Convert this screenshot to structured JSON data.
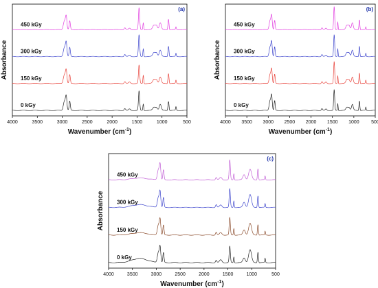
{
  "chart_data": [
    {
      "type": "line",
      "panel_label": "(a)",
      "xlabel": "Wavenumber (cm",
      "xlabel_sup": "-1",
      "xlabel_end": ")",
      "ylabel": "Absorbance",
      "xlim": [
        4000,
        500
      ],
      "x_reversed": true,
      "x_ticks": [
        4000,
        3500,
        3000,
        2500,
        2000,
        1500,
        1000,
        500
      ],
      "y_ticks_shown": false,
      "series": [
        {
          "name": "0 kGy",
          "color": "#222222",
          "offset": 0,
          "peaks": [
            [
              2955,
              0.42,
              22
            ],
            [
              2920,
              0.55,
              14
            ],
            [
              2850,
              0.4,
              12
            ],
            [
              1745,
              0.08,
              14
            ],
            [
              1650,
              0.06,
              18
            ],
            [
              1460,
              0.85,
              12
            ],
            [
              1375,
              0.28,
              8
            ],
            [
              1160,
              0.14,
              25
            ],
            [
              1110,
              0.12,
              20
            ],
            [
              1035,
              0.26,
              20
            ],
            [
              870,
              0.4,
              10
            ],
            [
              720,
              0.16,
              8
            ]
          ]
        },
        {
          "name": "150 kGy",
          "color": "#e8423a",
          "offset": 1,
          "peaks": [
            [
              2955,
              0.4,
              22
            ],
            [
              2920,
              0.52,
              14
            ],
            [
              2850,
              0.38,
              12
            ],
            [
              1745,
              0.08,
              14
            ],
            [
              1650,
              0.06,
              18
            ],
            [
              1460,
              0.8,
              12
            ],
            [
              1375,
              0.36,
              8
            ],
            [
              1160,
              0.18,
              25
            ],
            [
              1110,
              0.16,
              20
            ],
            [
              1035,
              0.28,
              20
            ],
            [
              870,
              0.44,
              10
            ],
            [
              720,
              0.14,
              8
            ]
          ]
        },
        {
          "name": "300 kGy",
          "color": "#3b43cc",
          "offset": 2,
          "peaks": [
            [
              2955,
              0.42,
              22
            ],
            [
              2920,
              0.55,
              14
            ],
            [
              2850,
              0.4,
              12
            ],
            [
              1745,
              0.09,
              14
            ],
            [
              1650,
              0.06,
              18
            ],
            [
              1460,
              0.95,
              12
            ],
            [
              1375,
              0.34,
              8
            ],
            [
              1160,
              0.18,
              25
            ],
            [
              1110,
              0.16,
              20
            ],
            [
              1035,
              0.28,
              20
            ],
            [
              870,
              0.46,
              10
            ],
            [
              720,
              0.14,
              8
            ]
          ]
        },
        {
          "name": "450 kGy",
          "color": "#e23ee0",
          "offset": 3,
          "peaks": [
            [
              2955,
              0.4,
              22
            ],
            [
              2920,
              0.52,
              14
            ],
            [
              2850,
              0.38,
              12
            ],
            [
              1745,
              0.08,
              14
            ],
            [
              1650,
              0.06,
              18
            ],
            [
              1460,
              0.95,
              12
            ],
            [
              1375,
              0.3,
              8
            ],
            [
              1160,
              0.2,
              25
            ],
            [
              1110,
              0.18,
              20
            ],
            [
              1035,
              0.3,
              20
            ],
            [
              870,
              0.46,
              10
            ],
            [
              720,
              0.12,
              8
            ]
          ]
        }
      ]
    },
    {
      "type": "line",
      "panel_label": "(b)",
      "xlabel": "Wavenumber (cm",
      "xlabel_sup": "-1",
      "xlabel_end": ")",
      "ylabel": "Absorbance",
      "xlim": [
        4000,
        500
      ],
      "x_reversed": true,
      "x_ticks": [
        4000,
        3500,
        3000,
        2500,
        2000,
        1500,
        1000,
        500
      ],
      "y_ticks_shown": false,
      "series": [
        {
          "name": "0 kGy",
          "color": "#222222",
          "offset": 0,
          "peaks": [
            [
              2955,
              0.45,
              22
            ],
            [
              2920,
              0.58,
              14
            ],
            [
              2850,
              0.42,
              12
            ],
            [
              1745,
              0.08,
              14
            ],
            [
              1650,
              0.06,
              18
            ],
            [
              1460,
              0.9,
              12
            ],
            [
              1375,
              0.3,
              8
            ],
            [
              1160,
              0.14,
              25
            ],
            [
              1110,
              0.12,
              20
            ],
            [
              1035,
              0.26,
              20
            ],
            [
              870,
              0.42,
              10
            ],
            [
              720,
              0.14,
              8
            ]
          ]
        },
        {
          "name": "150 kGy",
          "color": "#e8423a",
          "offset": 1,
          "peaks": [
            [
              2955,
              0.42,
              22
            ],
            [
              2920,
              0.55,
              14
            ],
            [
              2850,
              0.4,
              12
            ],
            [
              1745,
              0.08,
              14
            ],
            [
              1650,
              0.06,
              18
            ],
            [
              1460,
              0.95,
              12
            ],
            [
              1375,
              0.34,
              8
            ],
            [
              1160,
              0.18,
              25
            ],
            [
              1110,
              0.16,
              20
            ],
            [
              1035,
              0.28,
              20
            ],
            [
              870,
              0.46,
              10
            ],
            [
              720,
              0.14,
              8
            ]
          ]
        },
        {
          "name": "300 kGy",
          "color": "#3b43cc",
          "offset": 2,
          "peaks": [
            [
              2955,
              0.44,
              22
            ],
            [
              2920,
              0.57,
              14
            ],
            [
              2850,
              0.42,
              12
            ],
            [
              1745,
              0.09,
              14
            ],
            [
              1650,
              0.06,
              18
            ],
            [
              1460,
              0.95,
              12
            ],
            [
              1375,
              0.34,
              8
            ],
            [
              1160,
              0.18,
              25
            ],
            [
              1110,
              0.16,
              20
            ],
            [
              1035,
              0.28,
              20
            ],
            [
              870,
              0.46,
              10
            ],
            [
              720,
              0.14,
              8
            ]
          ]
        },
        {
          "name": "450 kGy",
          "color": "#e23ee0",
          "offset": 3,
          "peaks": [
            [
              2955,
              0.42,
              22
            ],
            [
              2920,
              0.55,
              14
            ],
            [
              2850,
              0.4,
              12
            ],
            [
              1745,
              0.08,
              14
            ],
            [
              1650,
              0.06,
              18
            ],
            [
              1460,
              1.0,
              12
            ],
            [
              1375,
              0.34,
              8
            ],
            [
              1160,
              0.2,
              25
            ],
            [
              1110,
              0.18,
              20
            ],
            [
              1035,
              0.3,
              20
            ],
            [
              870,
              0.44,
              10
            ],
            [
              720,
              0.12,
              8
            ]
          ]
        }
      ]
    },
    {
      "type": "line",
      "panel_label": "(c)",
      "xlabel": "Wavenumber (cm",
      "xlabel_sup": "-1",
      "xlabel_end": ")",
      "ylabel": "Absorbance",
      "xlim": [
        4000,
        500
      ],
      "x_reversed": true,
      "x_ticks": [
        4000,
        3500,
        3000,
        2500,
        2000,
        1500,
        1000,
        500
      ],
      "y_ticks_shown": false,
      "series": [
        {
          "name": "0 kGy",
          "color": "#222222",
          "offset": 0,
          "peaks": [
            [
              3350,
              0.18,
              160
            ],
            [
              2955,
              0.45,
              22
            ],
            [
              2920,
              0.6,
              14
            ],
            [
              2850,
              0.42,
              12
            ],
            [
              1745,
              0.1,
              14
            ],
            [
              1650,
              0.12,
              25
            ],
            [
              1460,
              0.7,
              12
            ],
            [
              1375,
              0.24,
              8
            ],
            [
              1160,
              0.2,
              25
            ],
            [
              1035,
              0.55,
              30
            ],
            [
              870,
              0.45,
              10
            ],
            [
              720,
              0.18,
              8
            ]
          ]
        },
        {
          "name": "150 kGy",
          "color": "#8a4a2a",
          "offset": 1,
          "peaks": [
            [
              3350,
              0.1,
              160
            ],
            [
              2955,
              0.45,
              22
            ],
            [
              2920,
              0.6,
              14
            ],
            [
              2850,
              0.42,
              12
            ],
            [
              1745,
              0.12,
              14
            ],
            [
              1650,
              0.1,
              25
            ],
            [
              1460,
              0.75,
              12
            ],
            [
              1375,
              0.28,
              8
            ],
            [
              1160,
              0.22,
              25
            ],
            [
              1035,
              0.5,
              30
            ],
            [
              870,
              0.45,
              10
            ],
            [
              720,
              0.16,
              8
            ]
          ]
        },
        {
          "name": "300 kGy",
          "color": "#3b43cc",
          "offset": 2,
          "peaks": [
            [
              3350,
              0.12,
              160
            ],
            [
              2955,
              0.45,
              22
            ],
            [
              2920,
              0.6,
              14
            ],
            [
              2850,
              0.42,
              12
            ],
            [
              1745,
              0.12,
              14
            ],
            [
              1650,
              0.1,
              25
            ],
            [
              1460,
              0.8,
              12
            ],
            [
              1375,
              0.28,
              8
            ],
            [
              1160,
              0.22,
              25
            ],
            [
              1035,
              0.55,
              30
            ],
            [
              870,
              0.5,
              10
            ],
            [
              720,
              0.16,
              8
            ]
          ]
        },
        {
          "name": "450 kGy",
          "color": "#c25ed6",
          "offset": 3,
          "peaks": [
            [
              3350,
              0.08,
              160
            ],
            [
              2955,
              0.45,
              22
            ],
            [
              2920,
              0.6,
              14
            ],
            [
              2850,
              0.42,
              12
            ],
            [
              1745,
              0.1,
              14
            ],
            [
              1650,
              0.1,
              25
            ],
            [
              1460,
              0.85,
              12
            ],
            [
              1375,
              0.26,
              8
            ],
            [
              1160,
              0.22,
              25
            ],
            [
              1035,
              0.45,
              30
            ],
            [
              870,
              0.48,
              10
            ],
            [
              720,
              0.16,
              8
            ]
          ]
        }
      ]
    }
  ]
}
